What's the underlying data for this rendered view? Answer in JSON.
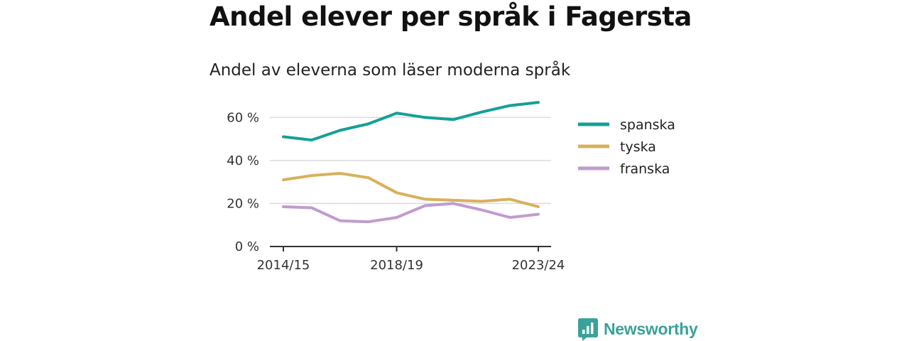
{
  "title": "Andel elever per språk i Fagersta",
  "subtitle": "Andel av eleverna som läser moderna språk",
  "brand": {
    "name": "Newsworthy",
    "icon": "newsworthy-logo-icon",
    "color": "#3aa29a"
  },
  "chart_data": {
    "type": "line",
    "title": "Andel elever per språk i Fagersta",
    "subtitle": "Andel av eleverna som läser moderna språk",
    "xlabel": "",
    "ylabel": "",
    "x": [
      "2014/15",
      "2015/16",
      "2016/17",
      "2017/18",
      "2018/19",
      "2019/20",
      "2020/21",
      "2021/22",
      "2022/23",
      "2023/24"
    ],
    "x_tick_labels": [
      "2014/15",
      "2018/19",
      "2023/24"
    ],
    "y_ticks": [
      0,
      20,
      40,
      60
    ],
    "y_tick_labels": [
      "0 %",
      "20 %",
      "40 %",
      "60 %"
    ],
    "ylim": [
      0,
      70
    ],
    "grid": true,
    "legend_position": "right",
    "series": [
      {
        "name": "spanska",
        "color": "#14a098",
        "values": [
          51,
          49.5,
          54,
          57,
          62,
          60,
          59,
          62.5,
          65.5,
          67
        ]
      },
      {
        "name": "tyska",
        "color": "#d9b05c",
        "values": [
          31,
          33,
          34,
          32,
          25,
          22,
          21.5,
          21,
          22,
          18.5
        ]
      },
      {
        "name": "franska",
        "color": "#c09bcf",
        "values": [
          18.5,
          18,
          12,
          11.5,
          13.5,
          19,
          20,
          17,
          13.5,
          15
        ]
      }
    ]
  }
}
